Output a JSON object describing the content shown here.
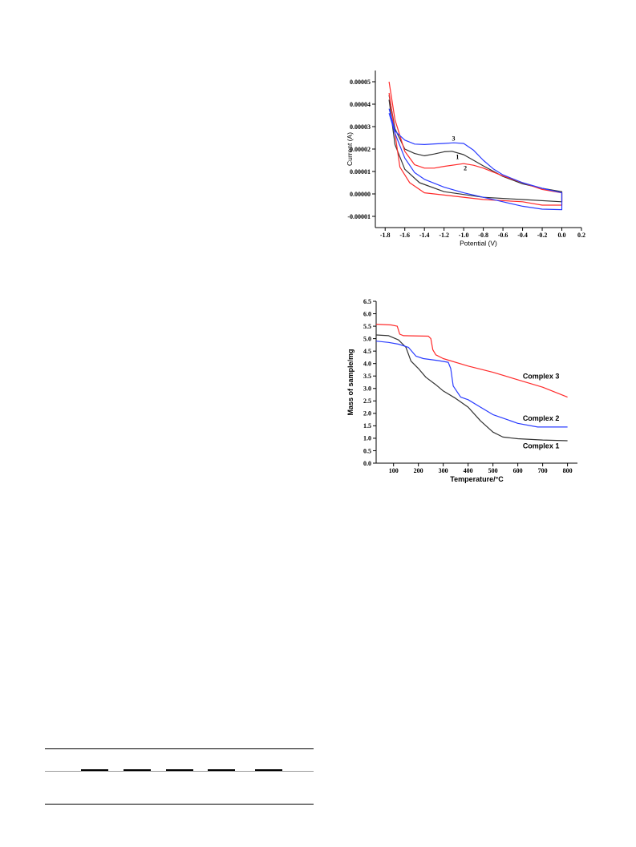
{
  "colors": {
    "black": "#333333",
    "red": "#ff2a2a",
    "blue": "#2a3cff"
  },
  "chart_data": [
    {
      "type": "line",
      "title": "",
      "xlabel": "Potential (V)",
      "ylabel": "Current (A)",
      "xlim": [
        -1.9,
        0.2
      ],
      "ylim": [
        -1.5e-05,
        5.5e-05
      ],
      "xticks": [
        "-1.8",
        "-1.6",
        "-1.4",
        "-1.2",
        "-1.0",
        "-0.8",
        "-0.6",
        "-0.4",
        "-0.2",
        "0.0",
        "0.2"
      ],
      "xtick_values": [
        -1.8,
        -1.6,
        -1.4,
        -1.2,
        -1.0,
        -0.8,
        -0.6,
        -0.4,
        -0.2,
        0.0,
        0.2
      ],
      "yticks": [
        "-0.00001",
        "0.00000",
        "0.00001",
        "0.00002",
        "0.00003",
        "0.00004",
        "0.00005"
      ],
      "ytick_values": [
        -1e-05,
        0,
        1e-05,
        2e-05,
        3e-05,
        4e-05,
        5e-05
      ],
      "annotations": [
        {
          "text": "3",
          "x": -1.12,
          "y": 2.38e-05
        },
        {
          "text": "1",
          "x": -1.08,
          "y": 1.55e-05
        },
        {
          "text": "2",
          "x": -1.0,
          "y": 1.05e-05
        }
      ],
      "series": [
        {
          "color": "#333333",
          "points": [
            [
              -1.76,
              4.4e-05
            ],
            [
              -1.7,
              2.9e-05
            ],
            [
              -1.6,
              2e-05
            ],
            [
              -1.5,
              1.8e-05
            ],
            [
              -1.4,
              1.7e-05
            ],
            [
              -1.3,
              1.78e-05
            ],
            [
              -1.2,
              1.88e-05
            ],
            [
              -1.12,
              1.9e-05
            ],
            [
              -1.0,
              1.75e-05
            ],
            [
              -0.9,
              1.5e-05
            ],
            [
              -0.8,
              1.25e-05
            ],
            [
              -0.6,
              7.8e-06
            ],
            [
              -0.4,
              4.5e-06
            ],
            [
              -0.2,
              2.5e-06
            ],
            [
              0.0,
              1e-06
            ],
            [
              0.0,
              -3.5e-06
            ],
            [
              -0.4,
              -2.5e-06
            ],
            [
              -0.8,
              -1.5e-06
            ],
            [
              -1.2,
              1e-06
            ],
            [
              -1.45,
              5e-06
            ],
            [
              -1.6,
              1.1e-05
            ],
            [
              -1.7,
              2.2e-05
            ],
            [
              -1.76,
              4.2e-05
            ]
          ]
        },
        {
          "color": "#ff2a2a",
          "points": [
            [
              -1.76,
              5e-05
            ],
            [
              -1.7,
              3.3e-05
            ],
            [
              -1.6,
              1.9e-05
            ],
            [
              -1.5,
              1.3e-05
            ],
            [
              -1.4,
              1.15e-05
            ],
            [
              -1.3,
              1.15e-05
            ],
            [
              -1.2,
              1.23e-05
            ],
            [
              -1.0,
              1.35e-05
            ],
            [
              -0.9,
              1.28e-05
            ],
            [
              -0.8,
              1.15e-05
            ],
            [
              -0.6,
              8e-06
            ],
            [
              -0.4,
              5e-06
            ],
            [
              -0.2,
              2e-06
            ],
            [
              0.0,
              5e-07
            ],
            [
              0.0,
              -5e-06
            ],
            [
              -0.2,
              -5e-06
            ],
            [
              -0.4,
              -3.5e-06
            ],
            [
              -0.8,
              -2.5e-06
            ],
            [
              -1.2,
              -5e-07
            ],
            [
              -1.4,
              5e-07
            ],
            [
              -1.55,
              5e-06
            ],
            [
              -1.65,
              1.2e-05
            ],
            [
              -1.76,
              4.5e-05
            ]
          ]
        },
        {
          "color": "#2a3cff",
          "points": [
            [
              -1.76,
              3.8e-05
            ],
            [
              -1.7,
              2.8e-05
            ],
            [
              -1.6,
              2.4e-05
            ],
            [
              -1.5,
              2.22e-05
            ],
            [
              -1.4,
              2.2e-05
            ],
            [
              -1.3,
              2.23e-05
            ],
            [
              -1.2,
              2.25e-05
            ],
            [
              -1.1,
              2.28e-05
            ],
            [
              -1.0,
              2.25e-05
            ],
            [
              -0.9,
              1.95e-05
            ],
            [
              -0.8,
              1.5e-05
            ],
            [
              -0.7,
              1.12e-05
            ],
            [
              -0.6,
              8.5e-06
            ],
            [
              -0.4,
              5e-06
            ],
            [
              -0.2,
              2.5e-06
            ],
            [
              0.0,
              5e-07
            ],
            [
              0.0,
              -7e-06
            ],
            [
              -0.2,
              -6.8e-06
            ],
            [
              -0.4,
              -5.5e-06
            ],
            [
              -0.6,
              -3.5e-06
            ],
            [
              -0.8,
              -1.5e-06
            ],
            [
              -1.0,
              5e-07
            ],
            [
              -1.2,
              3e-06
            ],
            [
              -1.4,
              6.5e-06
            ],
            [
              -1.5,
              9.5e-06
            ],
            [
              -1.6,
              1.6e-05
            ],
            [
              -1.7,
              2.7e-05
            ],
            [
              -1.76,
              3.6e-05
            ]
          ]
        }
      ]
    },
    {
      "type": "line",
      "title": "",
      "xlabel": "Temperature/°C",
      "ylabel": "Mass of sample/mg",
      "xlim": [
        30,
        840
      ],
      "ylim": [
        0,
        6.5
      ],
      "xticks": [
        "100",
        "200",
        "300",
        "400",
        "500",
        "600",
        "700",
        "800"
      ],
      "xtick_values": [
        100,
        200,
        300,
        400,
        500,
        600,
        700,
        800
      ],
      "yticks": [
        "0.0",
        "0.5",
        "1.0",
        "1.5",
        "2.0",
        "2.5",
        "3.0",
        "3.5",
        "4.0",
        "4.5",
        "5.0",
        "5.5",
        "6.0",
        "6.5"
      ],
      "ytick_values": [
        0,
        0.5,
        1,
        1.5,
        2,
        2.5,
        3,
        3.5,
        4,
        4.5,
        5,
        5.5,
        6,
        6.5
      ],
      "annotations": [
        {
          "text": "Complex 3",
          "x": 620,
          "y": 3.4
        },
        {
          "text": "Complex 2",
          "x": 620,
          "y": 1.7
        },
        {
          "text": "Complex 1",
          "x": 620,
          "y": 0.6
        }
      ],
      "series": [
        {
          "name": "Complex 1",
          "color": "#333333",
          "points": [
            [
              30,
              5.15
            ],
            [
              80,
              5.12
            ],
            [
              120,
              4.95
            ],
            [
              150,
              4.65
            ],
            [
              170,
              4.1
            ],
            [
              200,
              3.8
            ],
            [
              230,
              3.45
            ],
            [
              270,
              3.15
            ],
            [
              300,
              2.9
            ],
            [
              350,
              2.6
            ],
            [
              400,
              2.25
            ],
            [
              450,
              1.7
            ],
            [
              500,
              1.25
            ],
            [
              540,
              1.05
            ],
            [
              600,
              0.98
            ],
            [
              700,
              0.93
            ],
            [
              800,
              0.9
            ]
          ]
        },
        {
          "name": "Complex 2",
          "color": "#2a3cff",
          "points": [
            [
              30,
              4.9
            ],
            [
              80,
              4.85
            ],
            [
              120,
              4.78
            ],
            [
              160,
              4.65
            ],
            [
              190,
              4.3
            ],
            [
              220,
              4.2
            ],
            [
              280,
              4.12
            ],
            [
              320,
              4.05
            ],
            [
              330,
              3.8
            ],
            [
              340,
              3.1
            ],
            [
              370,
              2.65
            ],
            [
              400,
              2.55
            ],
            [
              450,
              2.25
            ],
            [
              500,
              1.95
            ],
            [
              600,
              1.6
            ],
            [
              680,
              1.45
            ],
            [
              800,
              1.45
            ]
          ]
        },
        {
          "name": "Complex 3",
          "color": "#ff2a2a",
          "points": [
            [
              30,
              5.58
            ],
            [
              90,
              5.55
            ],
            [
              115,
              5.5
            ],
            [
              125,
              5.18
            ],
            [
              140,
              5.12
            ],
            [
              240,
              5.1
            ],
            [
              250,
              5.0
            ],
            [
              258,
              4.55
            ],
            [
              270,
              4.35
            ],
            [
              300,
              4.2
            ],
            [
              400,
              3.9
            ],
            [
              500,
              3.65
            ],
            [
              600,
              3.35
            ],
            [
              700,
              3.05
            ],
            [
              800,
              2.65
            ]
          ]
        }
      ]
    }
  ]
}
